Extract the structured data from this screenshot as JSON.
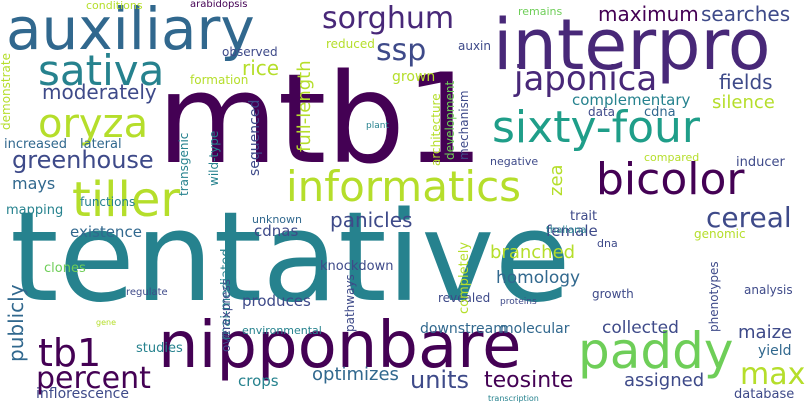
{
  "words": {
    "tentative": "tentative",
    "mtb1": "mtb1",
    "interpro": "interpro",
    "auxiliary": "auxiliary",
    "nipponbare": "nipponbare",
    "sixty_four": "sixty-four",
    "bicolor": "bicolor",
    "informatics": "informatics",
    "tiller": "tiller",
    "paddy": "paddy",
    "sorghum": "sorghum",
    "sativa": "sativa",
    "oryza": "oryza",
    "japonica": "japonica",
    "tb1": "tb1",
    "percent": "percent",
    "greenhouse": "greenhouse",
    "cereal": "cereal",
    "ssp": "ssp",
    "max": "max",
    "maximum": "maximum",
    "searches": "searches",
    "rice": "rice",
    "moderately": "moderately",
    "fields": "fields",
    "panicles": "panicles",
    "mays": "mays",
    "complementary": "complementary",
    "silence": "silence",
    "existence": "existence",
    "cdnas": "cdnas",
    "female": "female",
    "knockdown": "knockdown",
    "homology": "homology",
    "branched": "branched",
    "trait": "trait",
    "publicly": "publicly",
    "clones": "clones",
    "optimizes": "optimizes",
    "units": "units",
    "teosinte": "teosinte",
    "assigned": "assigned",
    "collected": "collected",
    "maize": "maize",
    "yield": "yield",
    "crops": "crops",
    "studies": "studies",
    "inflorescence": "inflorescence",
    "environmental": "environmental",
    "downstream": "downstream",
    "molecular": "molecular",
    "database": "database",
    "analysis": "analysis",
    "growth": "growth",
    "produces": "produces",
    "pathways": "pathways",
    "completely": "completely",
    "revealed": "revealed",
    "proteins": "proteins",
    "genomic": "genomic",
    "thaliana": "thaliana",
    "dna": "dna",
    "unknown": "unknown",
    "regulate": "regulate",
    "overexpress": "overexpress",
    "rnai_mediated": "rnai-mediated",
    "full_length": "full-length",
    "sequenced": "sequenced",
    "wild_type": "wild-type",
    "transgenic": "transgenic",
    "functions": "functions",
    "mapping": "mapping",
    "increased": "increased",
    "lateral": "lateral",
    "demonstrate": "demonstrate",
    "conditions": "conditions",
    "arabidopsis": "arabidopsis",
    "remains": "remains",
    "reduced": "reduced",
    "auxin": "auxin",
    "observed": "observed",
    "formation": "formation",
    "grown": "grown",
    "data": "data",
    "cdna": "cdna",
    "architecture": "architecture",
    "development": "development",
    "mechanism": "mechanism",
    "plant": "plant",
    "negative": "negative",
    "compared": "compared",
    "inducer": "inducer",
    "zea": "zea",
    "phenotypes": "phenotypes",
    "gene": "gene",
    "transcription": "transcription"
  }
}
